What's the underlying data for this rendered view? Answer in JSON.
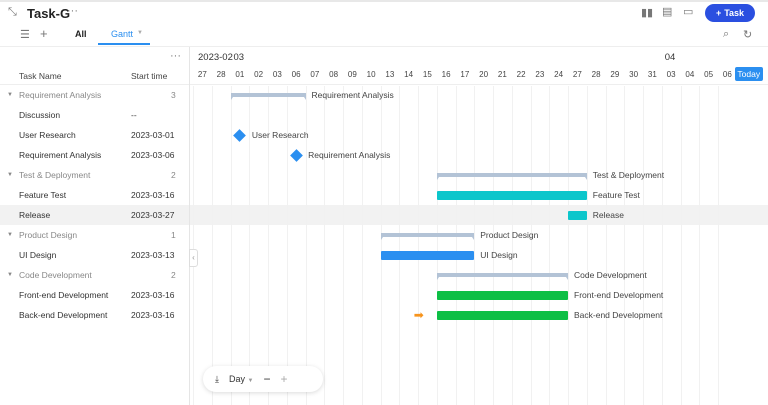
{
  "header": {
    "title": "Task-G",
    "more_icon": "ellipsis-icon",
    "new_task_label": "Task",
    "icons": [
      "bar-chart-icon",
      "comment-icon",
      "inbox-icon"
    ]
  },
  "tabs": [
    {
      "label": "All",
      "active": false
    },
    {
      "label": "Gantt",
      "active": true
    }
  ],
  "accent_color": "#2b8ff0",
  "table": {
    "columns": [
      "Task Name",
      "Start time"
    ],
    "rows": [
      {
        "type": "group",
        "name": "Requirement Analysis",
        "count": "3"
      },
      {
        "type": "task",
        "name": "Discussion",
        "start": "--"
      },
      {
        "type": "task",
        "name": "User Research",
        "start": "2023-03-01"
      },
      {
        "type": "task",
        "name": "Requirement Analysis",
        "start": "2023-03-06"
      },
      {
        "type": "group",
        "name": "Test & Deployment",
        "count": "2"
      },
      {
        "type": "task",
        "name": "Feature Test",
        "start": "2023-03-16"
      },
      {
        "type": "task",
        "name": "Release",
        "start": "2023-03-27",
        "highlighted": true
      },
      {
        "type": "group",
        "name": "Product Design",
        "count": "1"
      },
      {
        "type": "task",
        "name": "UI Design",
        "start": "2023-03-13"
      },
      {
        "type": "group",
        "name": "Code Development",
        "count": "2"
      },
      {
        "type": "task",
        "name": "Front-end Development",
        "start": "2023-03-16"
      },
      {
        "type": "task",
        "name": "Back-end Development",
        "start": "2023-03-16"
      }
    ]
  },
  "timeline": {
    "month_labels": [
      {
        "label": "2023-02",
        "at": "27"
      },
      {
        "label": "03",
        "at": "01"
      },
      {
        "label": "04",
        "at": "03"
      }
    ],
    "days": [
      "27",
      "28",
      "01",
      "02",
      "03",
      "06",
      "07",
      "08",
      "09",
      "10",
      "13",
      "14",
      "15",
      "16",
      "17",
      "20",
      "21",
      "22",
      "23",
      "24",
      "27",
      "28",
      "29",
      "30",
      "31",
      "03",
      "04",
      "05",
      "06"
    ],
    "today_label": "Today"
  },
  "bars": [
    {
      "row": 0,
      "kind": "group",
      "label": "Requirement Analysis",
      "start": 2,
      "end": 5
    },
    {
      "row": 2,
      "kind": "milestone",
      "label": "User Research",
      "start": 2,
      "end": 2
    },
    {
      "row": 3,
      "kind": "milestone",
      "label": "Requirement Analysis",
      "start": 5,
      "end": 5
    },
    {
      "row": 4,
      "kind": "group",
      "label": "Test & Deployment",
      "start": 13,
      "end": 20
    },
    {
      "row": 5,
      "kind": "task",
      "label": "Feature Test",
      "start": 13,
      "end": 20,
      "color": "#0cc6cb"
    },
    {
      "row": 6,
      "kind": "task",
      "label": "Release",
      "start": 20,
      "end": 20,
      "color": "#0cc6cb"
    },
    {
      "row": 7,
      "kind": "group",
      "label": "Product Design",
      "start": 10,
      "end": 14
    },
    {
      "row": 8,
      "kind": "task",
      "label": "UI Design",
      "start": 10,
      "end": 14,
      "color": "#2b8ff0"
    },
    {
      "row": 9,
      "kind": "group",
      "label": "Code Development",
      "start": 13,
      "end": 19
    },
    {
      "row": 10,
      "kind": "task",
      "label": "Front-end Development",
      "start": 13,
      "end": 19,
      "color": "#0dbf45"
    },
    {
      "row": 11,
      "kind": "task",
      "label": "Back-end Development",
      "start": 13,
      "end": 19,
      "color": "#0dbf45",
      "dependency_arrow": true
    }
  ],
  "zoom_toolbar": {
    "scale": "Day",
    "icons": [
      "download-icon",
      "minus-icon",
      "plus-icon"
    ]
  }
}
